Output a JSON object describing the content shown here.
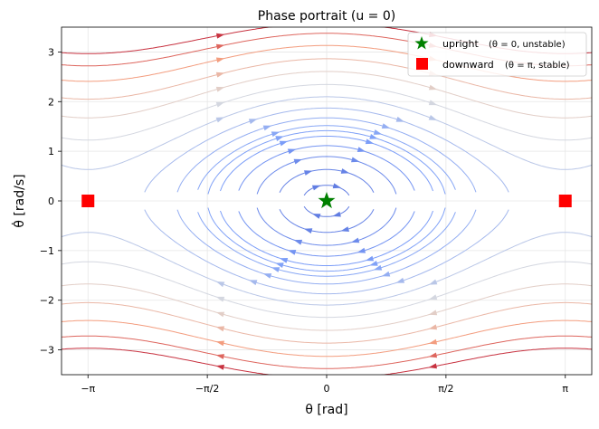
{
  "chart_data": {
    "type": "streamplot",
    "title": "Phase portrait  (u = 0)",
    "xlabel": "θ  [rad]",
    "ylabel": "θ̇  [rad/s]",
    "xlim": [
      -3.49,
      3.49
    ],
    "ylim": [
      -3.5,
      3.5
    ],
    "x_ticks": [
      {
        "value": -3.14159,
        "label": "−π"
      },
      {
        "value": -1.5708,
        "label": "−π/2"
      },
      {
        "value": 0,
        "label": "0"
      },
      {
        "value": 1.5708,
        "label": "π/2"
      },
      {
        "value": 3.14159,
        "label": "π"
      }
    ],
    "y_ticks": [
      {
        "value": -3,
        "label": "−3"
      },
      {
        "value": -2,
        "label": "−2"
      },
      {
        "value": -1,
        "label": "−1"
      },
      {
        "value": 0,
        "label": "0"
      },
      {
        "value": 1,
        "label": "1"
      },
      {
        "value": 2,
        "label": "2"
      },
      {
        "value": 3,
        "label": "3"
      }
    ],
    "grid": true,
    "colormap": "coolwarm",
    "legend_position": "top-right",
    "equilibria": [
      {
        "name": "upright",
        "label_main": "upright",
        "label_detail": "(θ = 0, unstable)",
        "x": 0,
        "y": 0,
        "marker": "star",
        "color": "#008000"
      },
      {
        "name": "downward",
        "label_main": "downward",
        "label_detail": "(θ = π, stable)",
        "x": 3.14159,
        "y": 0,
        "marker": "square",
        "color": "#ff0000"
      },
      {
        "name": "downward-mirror",
        "x": -3.14159,
        "y": 0,
        "marker": "square",
        "color": "#ff0000"
      }
    ]
  }
}
